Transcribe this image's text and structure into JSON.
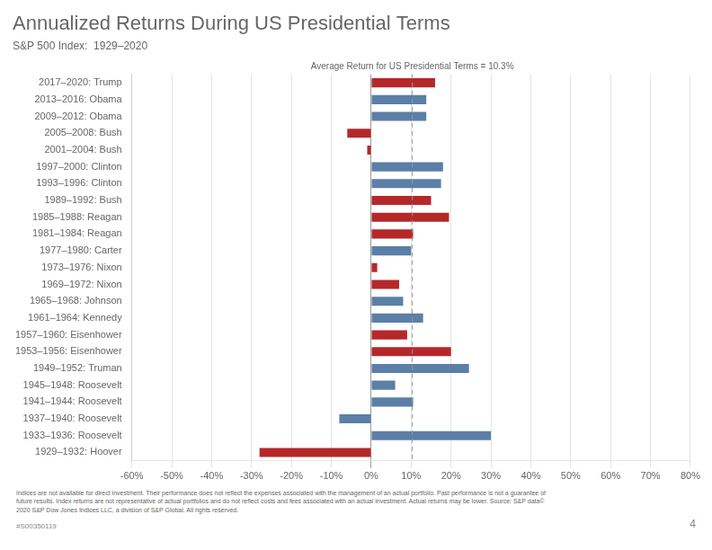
{
  "chart_data": {
    "type": "bar",
    "orientation": "horizontal",
    "title": "Annualized Returns During US Presidential Terms",
    "subtitle": "S&P 500 Index:  1929–2020",
    "categories": [
      "2017–2020: Trump",
      "2013–2016: Obama",
      "2009–2012: Obama",
      "2005–2008: Bush",
      "2001–2004: Bush",
      "1997–2000: Clinton",
      "1993–1996: Clinton",
      "1989–1992: Bush",
      "1985–1988: Reagan",
      "1981–1984: Reagan",
      "1977–1980: Carter",
      "1973–1976: Nixon",
      "1969–1972: Nixon",
      "1965–1968: Johnson",
      "1961–1964: Kennedy",
      "1957–1960: Eisenhower",
      "1953–1956: Eisenhower",
      "1949–1952: Truman",
      "1945–1948: Roosevelt",
      "1941–1944: Roosevelt",
      "1937–1940: Roosevelt",
      "1933–1936: Roosevelt",
      "1929–1932: Hoover"
    ],
    "values": [
      16.0,
      13.8,
      13.8,
      -6.0,
      -1.0,
      18.0,
      17.5,
      15.0,
      19.5,
      10.5,
      10.0,
      1.5,
      7.0,
      8.0,
      13.0,
      9.0,
      20.0,
      24.5,
      6.0,
      10.5,
      -8.0,
      30.0,
      -28.0
    ],
    "colors": [
      "#b5282a",
      "#5b7fa6",
      "#5b7fa6",
      "#b5282a",
      "#b5282a",
      "#5b7fa6",
      "#5b7fa6",
      "#b5282a",
      "#b5282a",
      "#b5282a",
      "#5b7fa6",
      "#b5282a",
      "#b5282a",
      "#5b7fa6",
      "#5b7fa6",
      "#b5282a",
      "#b5282a",
      "#5b7fa6",
      "#5b7fa6",
      "#5b7fa6",
      "#5b7fa6",
      "#5b7fa6",
      "#b5282a"
    ],
    "reference_line": {
      "value": 10.3,
      "label": "Average Return for US Presidential Terms = 10.3%"
    },
    "xlim": [
      -60,
      80
    ],
    "xticks": [
      {
        "value": -60,
        "label": "-60%"
      },
      {
        "value": -50,
        "label": "-50%"
      },
      {
        "value": -40,
        "label": "-40%"
      },
      {
        "value": -30,
        "label": "-30%"
      },
      {
        "value": -20,
        "label": "-20%"
      },
      {
        "value": -10,
        "label": "-10%"
      },
      {
        "value": 0,
        "label": "0%"
      },
      {
        "value": 10,
        "label": "10%"
      },
      {
        "value": 20,
        "label": "20%"
      },
      {
        "value": 30,
        "label": "30%"
      },
      {
        "value": 40,
        "label": "40%"
      },
      {
        "value": 50,
        "label": "50%"
      },
      {
        "value": 60,
        "label": "60%"
      },
      {
        "value": 70,
        "label": "70%"
      },
      {
        "value": 80,
        "label": "80%"
      }
    ],
    "grid": true,
    "notes": [
      "Indices are not available for direct investment. Their performance does not reflect the expenses associated with the management of an actual portfolio. Past performance is not a guarantee of",
      "future results. Index returns are not representative of actual portfolios and do not reflect costs and fees associated with an actual investment. Actual returns may be lower. Source: S&P data©",
      "2020 S&P Dow Jones Indices LLC, a division of S&P Global. All rights reserved."
    ],
    "footnote": "#S00350119",
    "page_number": "4"
  }
}
